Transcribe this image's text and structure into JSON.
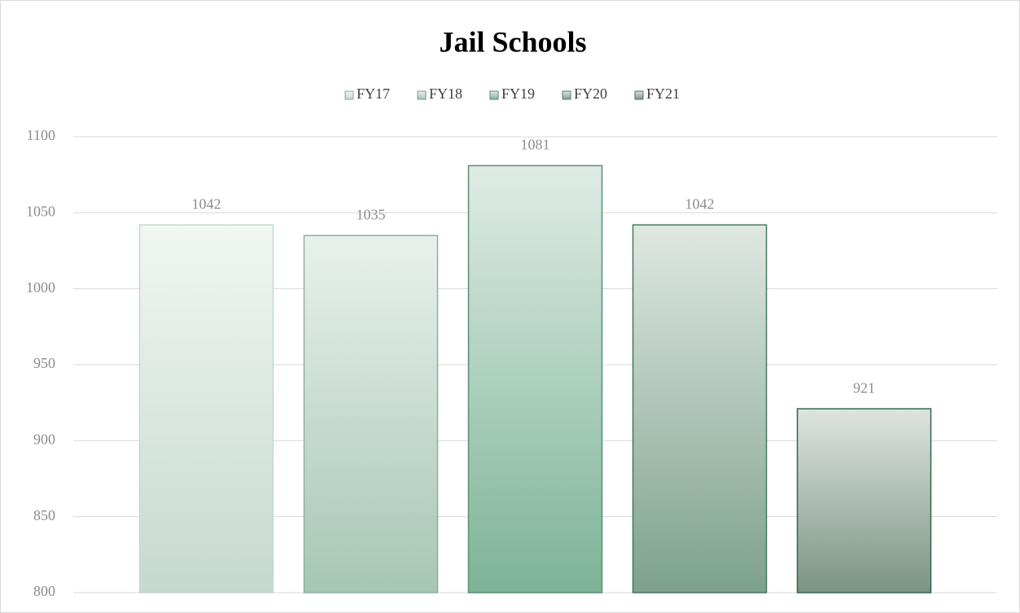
{
  "chart_data": {
    "type": "bar",
    "title": "Jail Schools",
    "categories": [
      null
    ],
    "series": [
      {
        "name": "FY17",
        "color": "#c5d9cf",
        "values": [
          1042
        ]
      },
      {
        "name": "FY18",
        "color": "#a6c6b5",
        "values": [
          1035
        ]
      },
      {
        "name": "FY19",
        "color": "#7db398",
        "values": [
          1081
        ]
      },
      {
        "name": "FY20",
        "color": "#7da18d",
        "values": [
          1042
        ]
      },
      {
        "name": "FY21",
        "color": "#7a9484",
        "values": [
          921
        ]
      }
    ],
    "ylim": [
      800,
      1100
    ],
    "yticks": [
      800,
      850,
      900,
      950,
      1000,
      1050,
      1100
    ],
    "grid": true,
    "legend": "top"
  }
}
